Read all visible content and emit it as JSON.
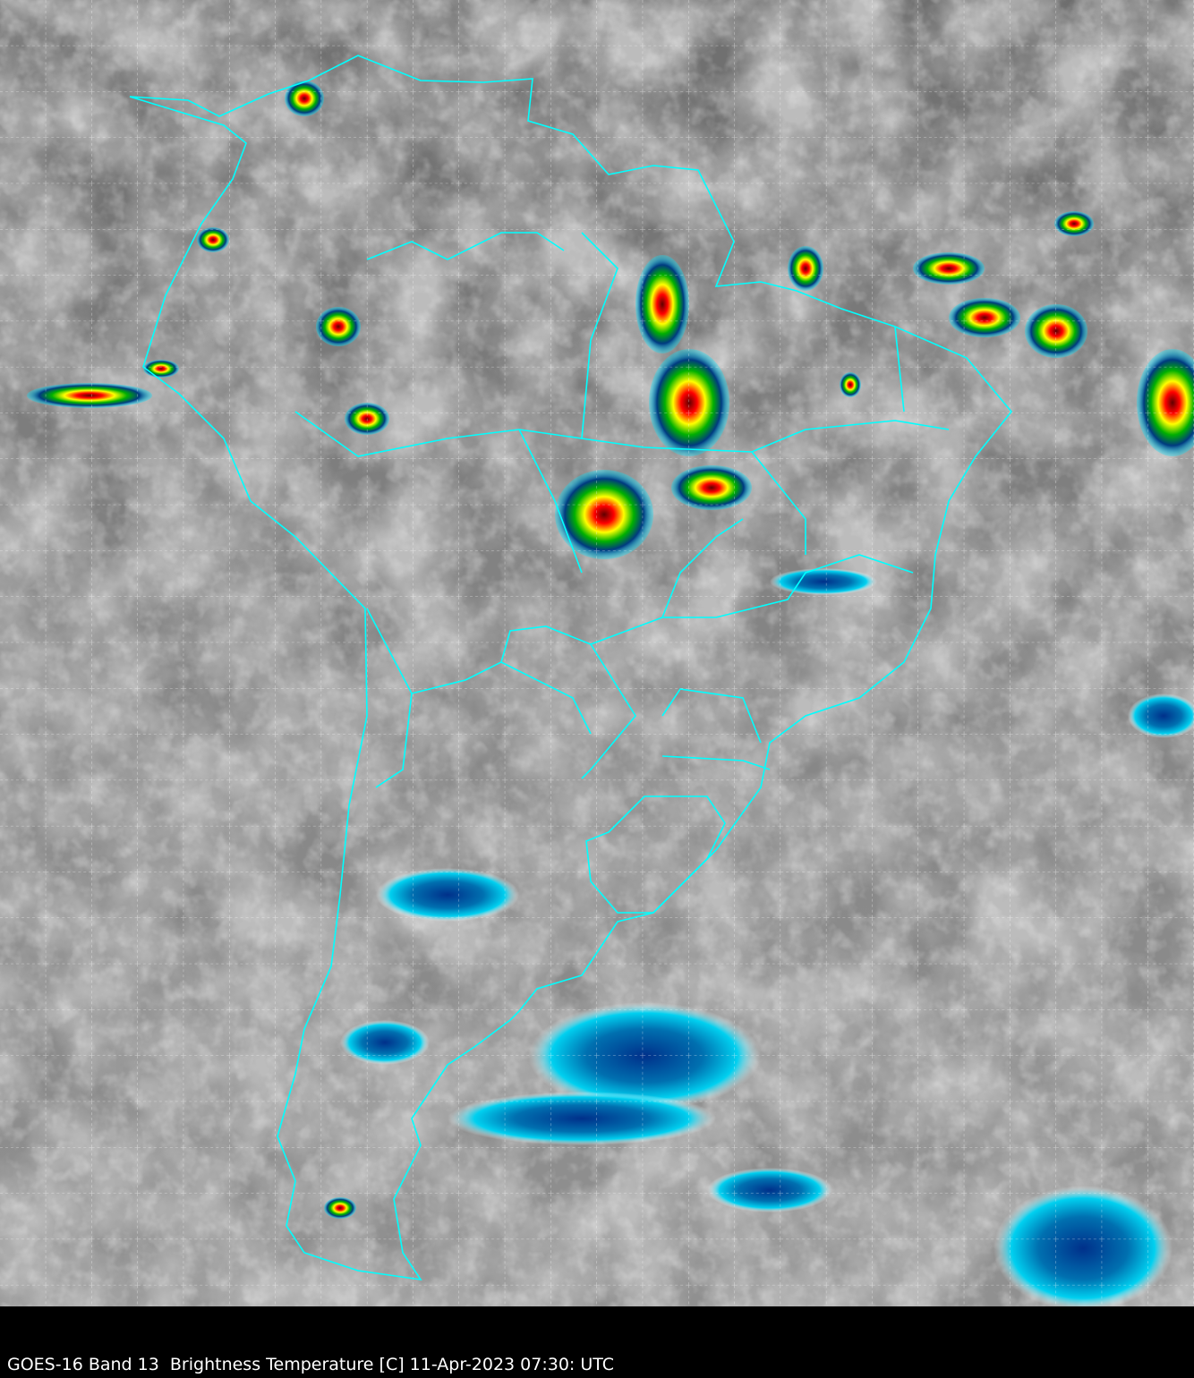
{
  "caption": "GOES-16 Band 13  Brightness Temperature [C] 11-Apr-2023 07:30: UTC",
  "colors": {
    "background_gray": "#777777",
    "boundaries": "#00ffff",
    "grid": "#ffffff",
    "cold_cloud_scale": [
      "#ffffff",
      "#00e5ff",
      "#0050a0",
      "#003070",
      "#00a000",
      "#ffff00",
      "#ff8000",
      "#ff0000",
      "#600000"
    ]
  },
  "layers": {
    "imagery": "infrared-brightness-temperature",
    "overlay": "country-and-state-boundaries",
    "grid": "lat-lon-dashed"
  }
}
